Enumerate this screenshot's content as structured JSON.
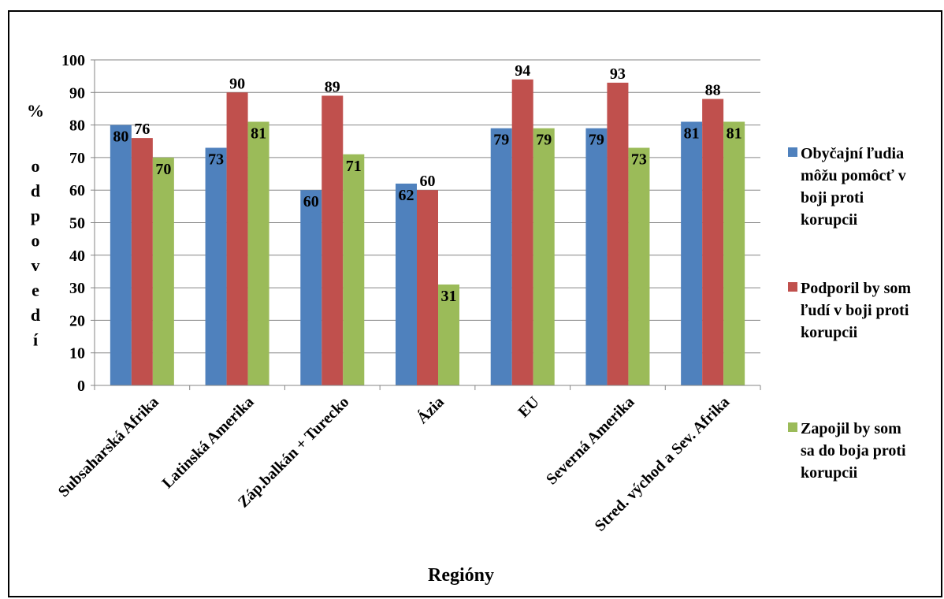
{
  "chart_data": {
    "type": "bar",
    "categories": [
      "Subsaharská Afrika",
      "Latinská Amerika",
      "Záp.balkán + Turecko",
      "Ázia",
      "EU",
      "Severná Amerika",
      "Stred. východ a Sev. Afrika"
    ],
    "series": [
      {
        "name": "Obyčajní ľudia môžu pomôcť v boji proti korupcii",
        "legend_lines": [
          "Obyčajní ľudia",
          "môžu pomôcť v",
          "boji proti",
          "korupcii"
        ],
        "color": "#4f81bd",
        "values": [
          80,
          73,
          60,
          62,
          79,
          79,
          81
        ]
      },
      {
        "name": "Podporil by som ľudí v boji proti korupcii",
        "legend_lines": [
          "Podporil by som",
          "ľudí v boji proti",
          "korupcii"
        ],
        "color": "#c0504d",
        "values": [
          76,
          90,
          89,
          60,
          94,
          93,
          88
        ]
      },
      {
        "name": "Zapojil by som sa do boja proti korupcii",
        "legend_lines": [
          "Zapojil by som",
          "sa do boja proti",
          "korupcii"
        ],
        "color": "#9bbb59",
        "values": [
          70,
          81,
          71,
          31,
          79,
          73,
          81
        ]
      }
    ],
    "ylim": [
      0,
      100
    ],
    "yticks": [
      0,
      10,
      20,
      30,
      40,
      50,
      60,
      70,
      80,
      90,
      100
    ],
    "ylabel_unit": "%",
    "ylabel_letters": [
      "o",
      "d",
      "p",
      "o",
      "v",
      "e",
      "d",
      "í"
    ],
    "ylabel": "% odpovedí",
    "xlabel": "Regióny",
    "grid": true,
    "legend_position": "right"
  }
}
